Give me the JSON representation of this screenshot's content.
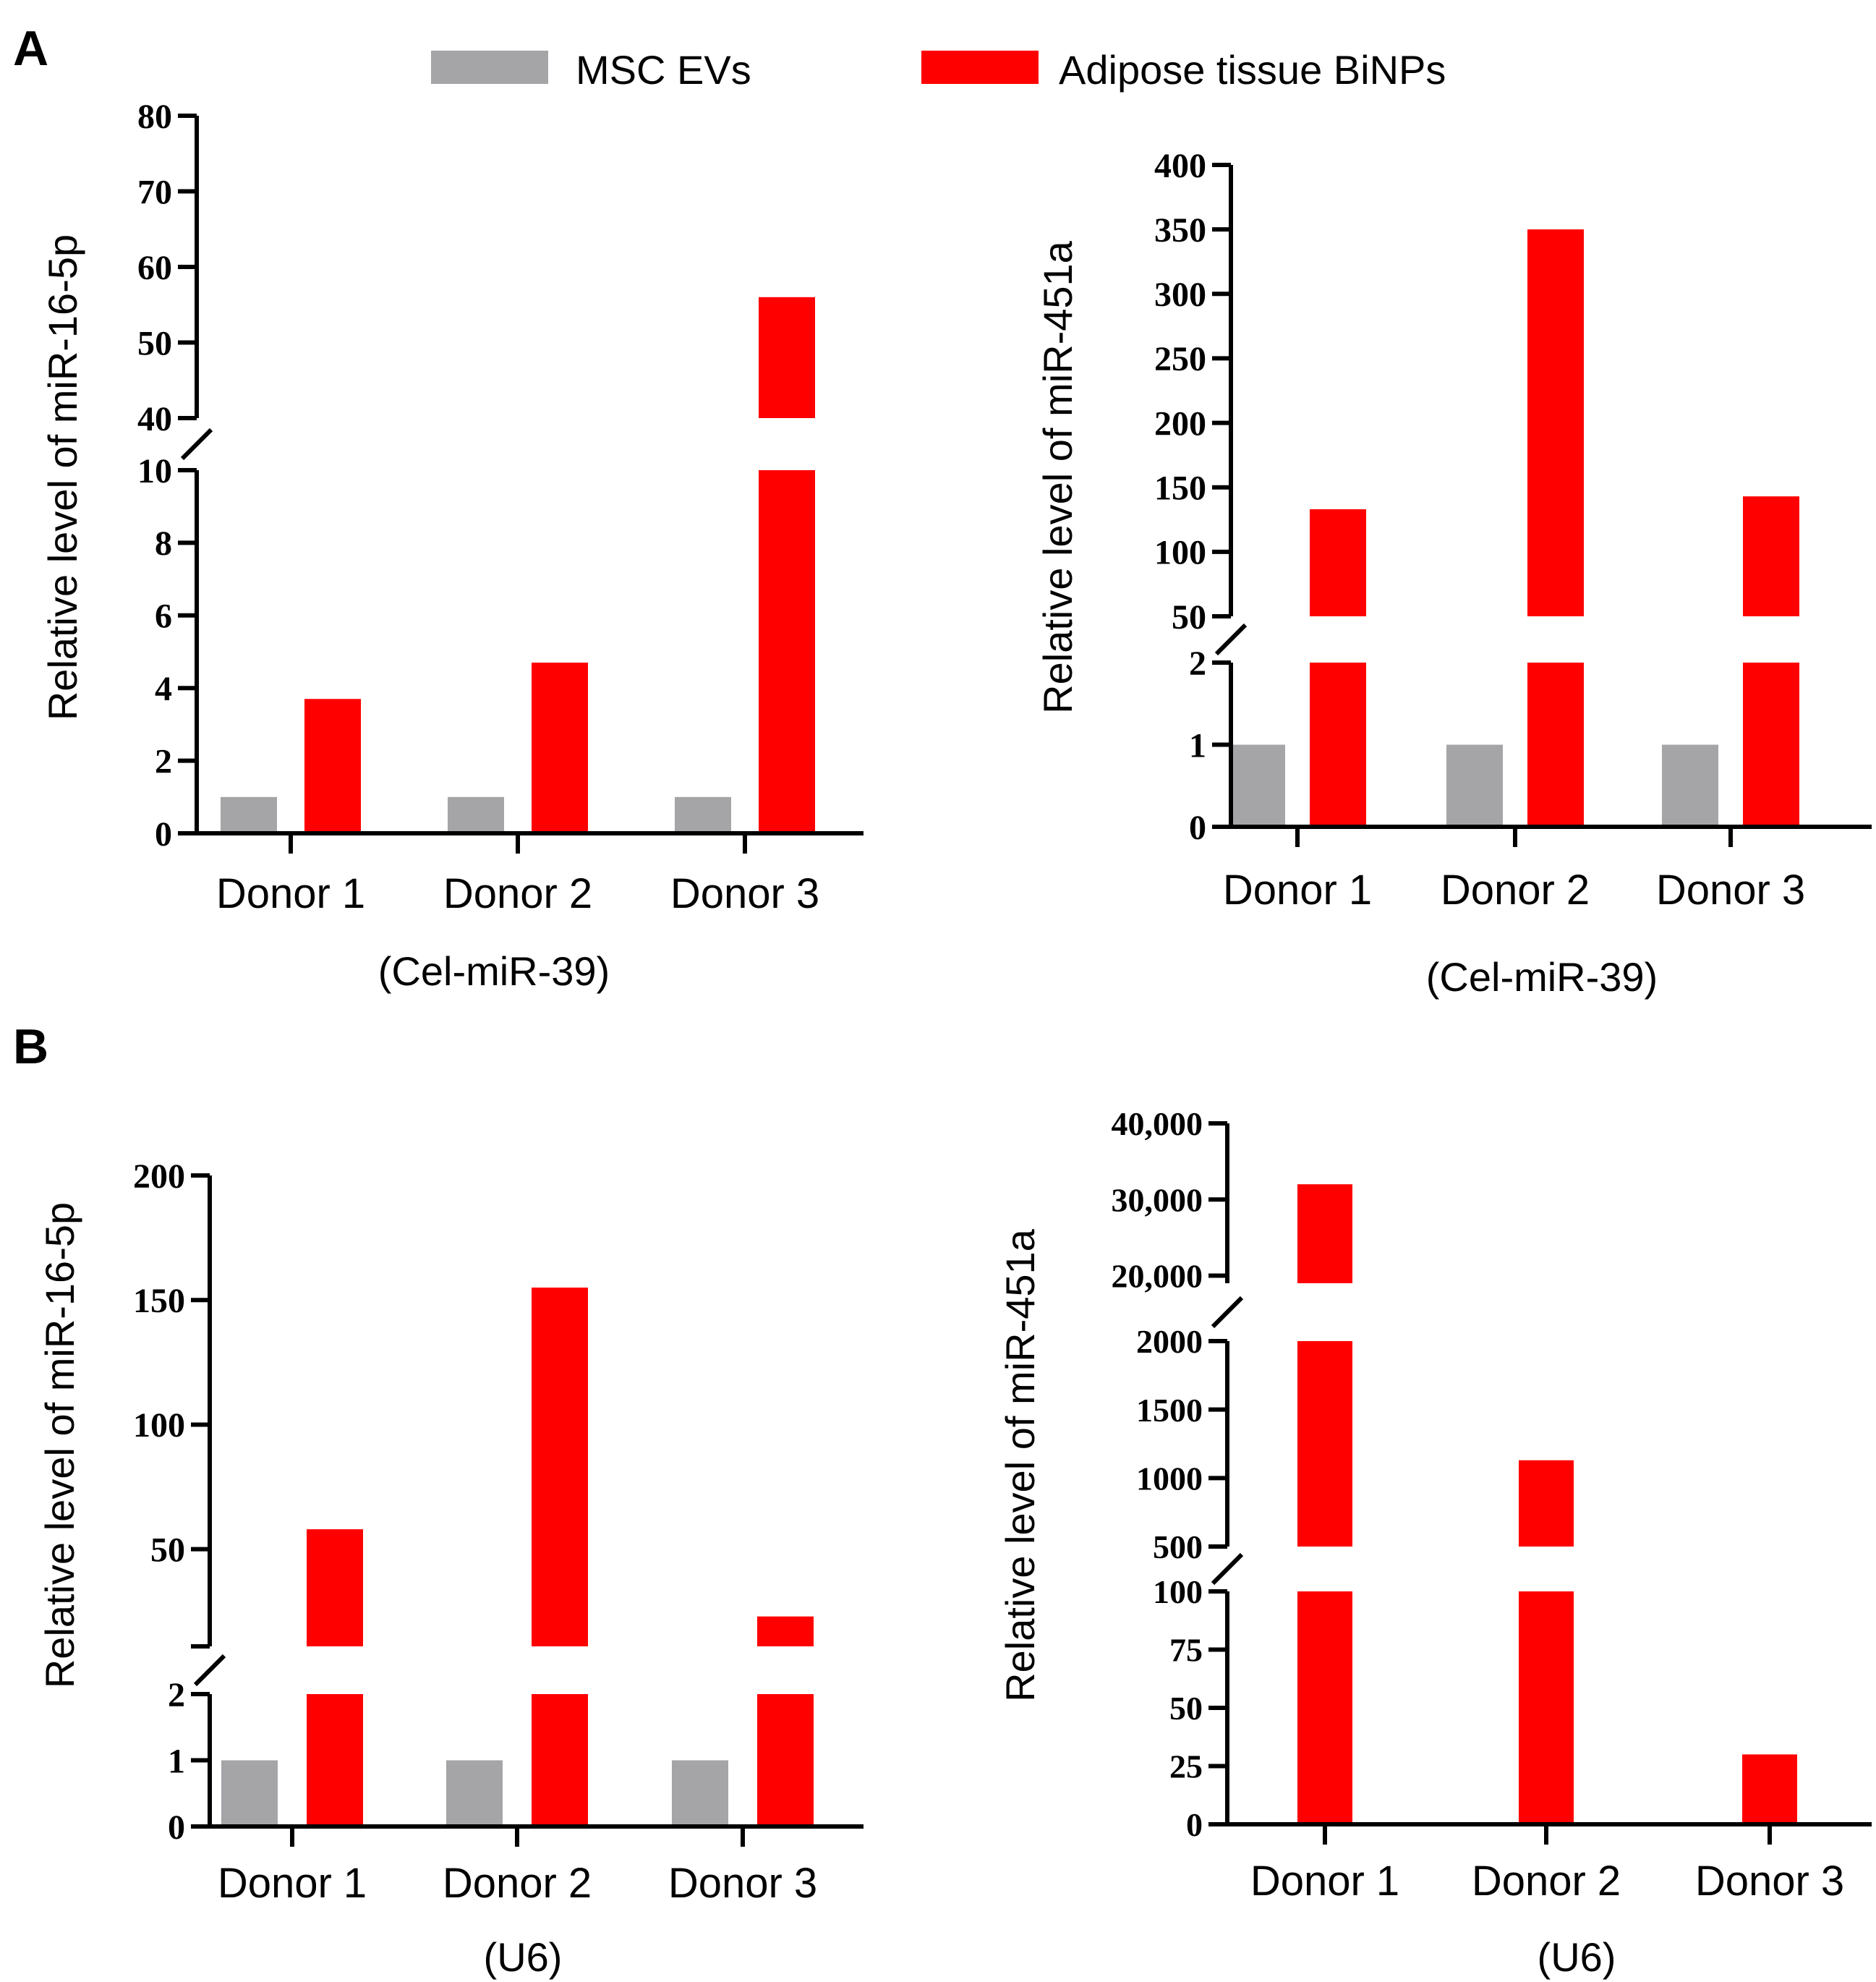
{
  "figure": {
    "legend": [
      {
        "name": "MSC EVs",
        "color": "#a5a5a8"
      },
      {
        "name": "Adipose tissue BiNPs",
        "color": "#ff0000"
      }
    ]
  },
  "chart_data": [
    {
      "panel": "A",
      "type": "bar",
      "title": "",
      "ylabel": "Relative level of miR-16-5p",
      "xlabel": "(Cel-miR-39)",
      "categories": [
        "Donor 1",
        "Donor 2",
        "Donor 3"
      ],
      "series": [
        {
          "name": "MSC EVs",
          "color": "#a5a5a8",
          "values": [
            1,
            1,
            1
          ]
        },
        {
          "name": "Adipose tissue BiNPs",
          "color": "#ff0000",
          "values": [
            3.7,
            4.7,
            56
          ]
        }
      ],
      "axis_break": true,
      "segments": [
        {
          "range": [
            0,
            10
          ],
          "ticks": [
            0,
            2,
            4,
            6,
            8,
            10
          ],
          "tick_labels": [
            "0",
            "2",
            "4",
            "6",
            "8",
            "10"
          ]
        },
        {
          "range": [
            40,
            80
          ],
          "ticks": [
            40,
            50,
            60,
            70,
            80
          ],
          "tick_labels": [
            "40",
            "50",
            "60",
            "70",
            "80"
          ]
        }
      ],
      "ylim": [
        0,
        80
      ]
    },
    {
      "panel": "A",
      "type": "bar",
      "title": "",
      "ylabel": "Relative level of miR-451a",
      "xlabel": "(Cel-miR-39)",
      "categories": [
        "Donor 1",
        "Donor 2",
        "Donor 3"
      ],
      "series": [
        {
          "name": "MSC EVs",
          "color": "#a5a5a8",
          "values": [
            1,
            1,
            1
          ]
        },
        {
          "name": "Adipose tissue BiNPs",
          "color": "#ff0000",
          "values": [
            133,
            350,
            143
          ]
        }
      ],
      "axis_break": true,
      "segments": [
        {
          "range": [
            0,
            2
          ],
          "ticks": [
            0,
            1,
            2
          ],
          "tick_labels": [
            "0",
            "1",
            "2"
          ]
        },
        {
          "range": [
            50,
            400
          ],
          "ticks": [
            50,
            100,
            150,
            200,
            250,
            300,
            350,
            400
          ],
          "tick_labels": [
            "50",
            "100",
            "150",
            "200",
            "250",
            "300",
            "350",
            "400"
          ]
        }
      ],
      "ylim": [
        0,
        400
      ]
    },
    {
      "panel": "B",
      "type": "bar",
      "title": "",
      "ylabel": "Relative level of miR-16-5p",
      "xlabel": "(U6)",
      "categories": [
        "Donor 1",
        "Donor 2",
        "Donor 3"
      ],
      "series": [
        {
          "name": "MSC EVs",
          "color": "#a5a5a8",
          "values": [
            1,
            1,
            1
          ]
        },
        {
          "name": "Adipose tissue BiNPs",
          "color": "#ff0000",
          "values": [
            58,
            155,
            23
          ]
        }
      ],
      "axis_break": true,
      "segments": [
        {
          "range": [
            0,
            2
          ],
          "ticks": [
            0,
            1,
            2
          ],
          "tick_labels": [
            "0",
            "1",
            "2"
          ]
        },
        {
          "range": [
            11,
            200
          ],
          "ticks": [
            11,
            50,
            100,
            150,
            200
          ],
          "tick_labels": [
            "",
            "50",
            "100",
            "150",
            "200"
          ]
        }
      ],
      "ylim": [
        0,
        200
      ]
    },
    {
      "panel": "B",
      "type": "bar",
      "title": "",
      "ylabel": "Relative level of miR-451a",
      "xlabel": "(U6)",
      "categories": [
        "Donor 1",
        "Donor 2",
        "Donor 3"
      ],
      "series": [
        {
          "name": "Adipose tissue BiNPs",
          "color": "#ff0000",
          "values": [
            32000,
            1130,
            30
          ]
        }
      ],
      "axis_break": true,
      "segments": [
        {
          "range": [
            0,
            100
          ],
          "ticks": [
            0,
            25,
            50,
            75,
            100
          ],
          "tick_labels": [
            "0",
            "25",
            "50",
            "75",
            "100"
          ]
        },
        {
          "range": [
            500,
            2000
          ],
          "ticks": [
            500,
            1000,
            1500,
            2000
          ],
          "tick_labels": [
            "500",
            "1000",
            "1500",
            "2000"
          ]
        },
        {
          "range": [
            19000,
            40000
          ],
          "ticks": [
            20000,
            30000,
            40000
          ],
          "tick_labels": [
            "20,000",
            "30,000",
            "40,000"
          ]
        }
      ],
      "ylim": [
        0,
        40000
      ]
    }
  ]
}
